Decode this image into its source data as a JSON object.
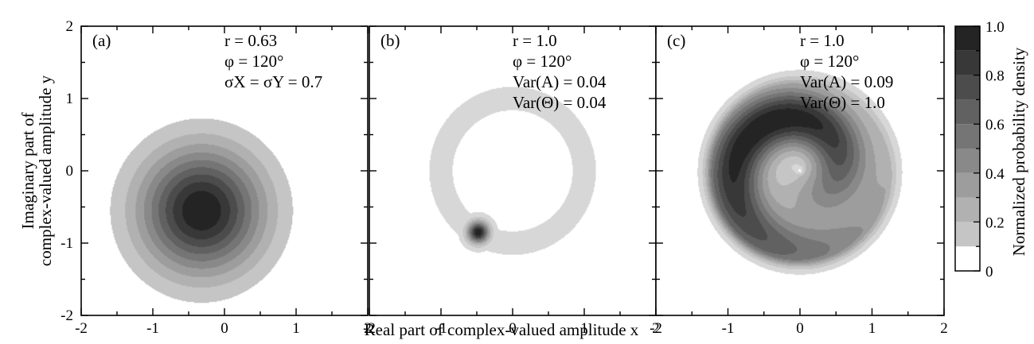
{
  "chart_data": [
    {
      "panel": "(a)",
      "type": "contour",
      "xlim": [
        -2,
        2
      ],
      "ylim": [
        -2,
        2
      ],
      "xticks": [
        "-2",
        "-1",
        "0",
        "1",
        "2"
      ],
      "yticks": [
        "-2",
        "-1",
        "0",
        "1",
        "2"
      ],
      "ylabel_lines": [
        "Imaginary part of",
        "complex-valued amplitude y"
      ],
      "annotations": [
        "r =  0.63",
        "φ = 120°",
        "σX = σY = 0.7"
      ],
      "model": "gaussian",
      "center": [
        -0.32,
        -0.55
      ],
      "sigma": 0.7,
      "levels": [
        0.1,
        0.2,
        0.3,
        0.4,
        0.5,
        0.6,
        0.7,
        0.8,
        0.9
      ]
    },
    {
      "panel": "(b)",
      "type": "contour",
      "xlim": [
        -2,
        2
      ],
      "ylim": [
        -2,
        2
      ],
      "xticks": [
        "-2",
        "-1",
        "0",
        "1",
        "2"
      ],
      "yticks": [],
      "annotations": [
        "r =  1.0",
        "φ = 120°",
        "Var(A) = 0.04",
        "Var(Θ) = 0.04"
      ],
      "model": "ring-blob",
      "ring_radius": 1.0,
      "ring_center": [
        0.0,
        0.0
      ],
      "blob_center": [
        -0.48,
        -0.85
      ],
      "levels": [
        0.02,
        0.1,
        0.2,
        0.3,
        0.4,
        0.5,
        0.6,
        0.7,
        0.8,
        0.9
      ]
    },
    {
      "panel": "(c)",
      "type": "contour",
      "xlim": [
        -2,
        2
      ],
      "ylim": [
        -2,
        2
      ],
      "xticks": [
        "-2",
        "-1",
        "0",
        "1",
        "2"
      ],
      "yticks": [],
      "annotations": [
        "r =  1.0",
        "φ = 120°",
        "Var(A) = 0.09",
        "Var(Θ) = 1.0"
      ],
      "model": "spiral",
      "levels": [
        0.02,
        0.1,
        0.2,
        0.3,
        0.4,
        0.5,
        0.6,
        0.7,
        0.8,
        0.9
      ]
    }
  ],
  "xlabel": "Real part of complex-valued amplitude x",
  "colorbar": {
    "label": "Normalized probability density",
    "range": [
      0,
      1
    ],
    "ticks": [
      "0",
      "0.2",
      "0.4",
      "0.6",
      "0.8",
      "1.0"
    ],
    "color_low": "#ffffff",
    "color_high": "#1a1a1a"
  }
}
